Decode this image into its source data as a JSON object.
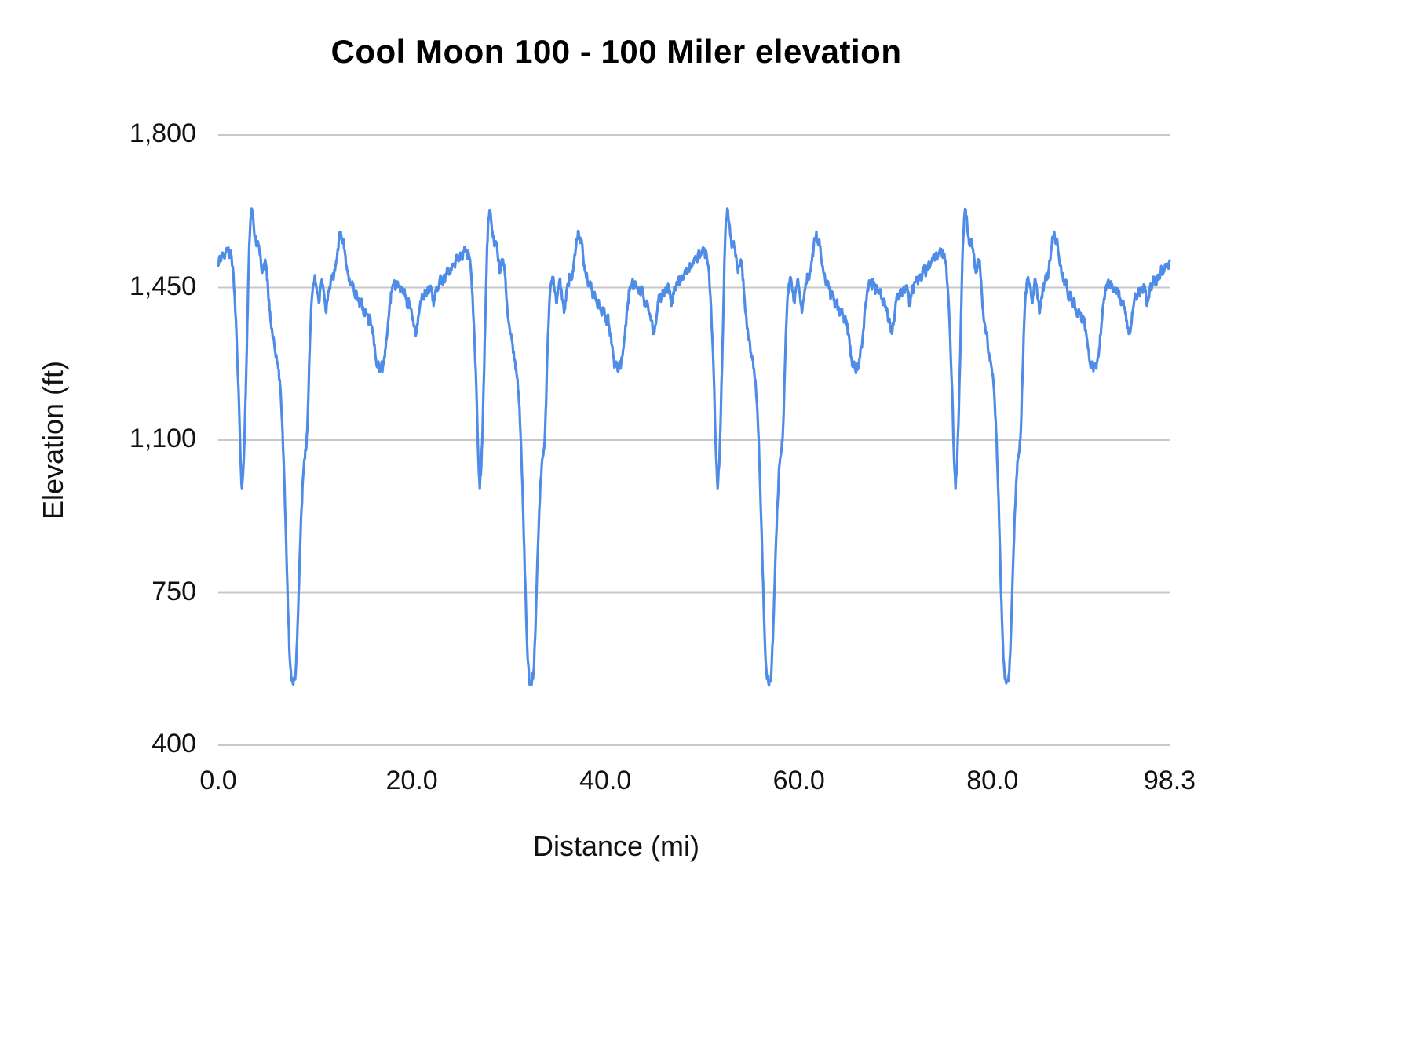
{
  "chart_data": {
    "type": "line",
    "title": "Cool Moon 100 - 100 Miler elevation",
    "xlabel": "Distance (mi)",
    "ylabel": "Elevation (ft)",
    "xlim": [
      0,
      98.3
    ],
    "ylim": [
      400,
      1800
    ],
    "grid": true,
    "legend": "none",
    "x_tick_values": [
      0,
      20,
      40,
      60,
      80,
      98.3
    ],
    "x_tick_labels": [
      "0.0",
      "20.0",
      "40.0",
      "60.0",
      "80.0",
      "98.3"
    ],
    "y_tick_values": [
      400,
      750,
      1100,
      1450,
      1800
    ],
    "y_tick_labels": [
      "400",
      "750",
      "1,100",
      "1,450",
      "1,800"
    ],
    "series": [
      {
        "name": "Elevation",
        "color": "#4f8ce8",
        "laps": 4,
        "lap_distance_mi": 24.575,
        "lap_profile": [
          [
            0,
            1500
          ],
          [
            0.15,
            1522
          ],
          [
            0.3,
            1512
          ],
          [
            0.45,
            1530
          ],
          [
            0.6,
            1518
          ],
          [
            0.8,
            1532
          ],
          [
            1,
            1538
          ],
          [
            1.15,
            1518
          ],
          [
            1.3,
            1528
          ],
          [
            1.5,
            1498
          ],
          [
            1.7,
            1430
          ],
          [
            1.9,
            1335
          ],
          [
            2.1,
            1215
          ],
          [
            2.3,
            1055
          ],
          [
            2.45,
            988
          ],
          [
            2.6,
            1040
          ],
          [
            2.75,
            1135
          ],
          [
            2.9,
            1265
          ],
          [
            3.05,
            1405
          ],
          [
            3.2,
            1545
          ],
          [
            3.35,
            1610
          ],
          [
            3.5,
            1628
          ],
          [
            3.65,
            1598
          ],
          [
            3.8,
            1565
          ],
          [
            3.95,
            1545
          ],
          [
            4.1,
            1556
          ],
          [
            4.25,
            1538
          ],
          [
            4.4,
            1512
          ],
          [
            4.55,
            1484
          ],
          [
            4.7,
            1500
          ],
          [
            4.85,
            1514
          ],
          [
            5,
            1492
          ],
          [
            5.15,
            1444
          ],
          [
            5.3,
            1398
          ],
          [
            5.45,
            1368
          ],
          [
            5.6,
            1344
          ],
          [
            5.75,
            1330
          ],
          [
            5.9,
            1300
          ],
          [
            6.05,
            1284
          ],
          [
            6.2,
            1264
          ],
          [
            6.35,
            1238
          ],
          [
            6.5,
            1188
          ],
          [
            6.65,
            1118
          ],
          [
            6.8,
            1028
          ],
          [
            6.95,
            918
          ],
          [
            7.1,
            798
          ],
          [
            7.25,
            688
          ],
          [
            7.4,
            598
          ],
          [
            7.55,
            552
          ],
          [
            7.7,
            542
          ],
          [
            7.85,
            550
          ],
          [
            8,
            566
          ],
          [
            8.15,
            640
          ],
          [
            8.3,
            742
          ],
          [
            8.45,
            850
          ],
          [
            8.6,
            940
          ],
          [
            8.75,
            1012
          ],
          [
            8.9,
            1056
          ],
          [
            9.05,
            1076
          ],
          [
            9.2,
            1122
          ],
          [
            9.35,
            1232
          ],
          [
            9.5,
            1342
          ],
          [
            9.65,
            1420
          ],
          [
            9.8,
            1458
          ],
          [
            9.95,
            1474
          ],
          [
            10.1,
            1458
          ],
          [
            10.25,
            1438
          ],
          [
            10.4,
            1414
          ],
          [
            10.55,
            1450
          ],
          [
            10.7,
            1468
          ],
          [
            10.85,
            1448
          ],
          [
            11,
            1420
          ],
          [
            11.15,
            1392
          ],
          [
            11.3,
            1420
          ],
          [
            11.45,
            1444
          ],
          [
            11.6,
            1458
          ],
          [
            11.75,
            1478
          ],
          [
            11.9,
            1468
          ],
          [
            12.05,
            1488
          ],
          [
            12.2,
            1512
          ],
          [
            12.35,
            1538
          ],
          [
            12.5,
            1562
          ],
          [
            12.65,
            1578
          ],
          [
            12.8,
            1552
          ],
          [
            12.95,
            1560
          ],
          [
            13.1,
            1528
          ],
          [
            13.25,
            1500
          ],
          [
            13.4,
            1482
          ],
          [
            13.55,
            1470
          ],
          [
            13.7,
            1456
          ],
          [
            13.85,
            1464
          ],
          [
            14,
            1446
          ],
          [
            14.15,
            1426
          ],
          [
            14.3,
            1440
          ],
          [
            14.45,
            1420
          ],
          [
            14.6,
            1406
          ],
          [
            14.75,
            1420
          ],
          [
            14.9,
            1400
          ],
          [
            15.05,
            1386
          ],
          [
            15.2,
            1400
          ],
          [
            15.35,
            1390
          ],
          [
            15.5,
            1370
          ],
          [
            15.65,
            1384
          ],
          [
            15.8,
            1364
          ],
          [
            15.95,
            1344
          ],
          [
            16.1,
            1318
          ],
          [
            16.25,
            1290
          ],
          [
            16.4,
            1268
          ],
          [
            16.55,
            1280
          ],
          [
            16.7,
            1258
          ],
          [
            16.85,
            1274
          ],
          [
            17,
            1264
          ],
          [
            17.15,
            1290
          ],
          [
            17.3,
            1312
          ],
          [
            17.45,
            1342
          ],
          [
            17.6,
            1380
          ],
          [
            17.75,
            1416
          ],
          [
            17.9,
            1440
          ],
          [
            18.05,
            1456
          ],
          [
            18.2,
            1466
          ],
          [
            18.35,
            1450
          ],
          [
            18.5,
            1464
          ],
          [
            18.65,
            1454
          ],
          [
            18.8,
            1440
          ],
          [
            18.95,
            1450
          ],
          [
            19.1,
            1436
          ],
          [
            19.25,
            1446
          ],
          [
            19.4,
            1424
          ],
          [
            19.55,
            1410
          ],
          [
            19.7,
            1420
          ],
          [
            19.85,
            1404
          ],
          [
            20,
            1390
          ],
          [
            20.15,
            1374
          ],
          [
            20.3,
            1358
          ],
          [
            20.45,
            1344
          ],
          [
            20.6,
            1364
          ],
          [
            20.75,
            1390
          ],
          [
            20.9,
            1418
          ],
          [
            21.05,
            1434
          ],
          [
            21.2,
            1424
          ],
          [
            21.35,
            1444
          ],
          [
            21.5,
            1430
          ],
          [
            21.65,
            1450
          ],
          [
            21.8,
            1438
          ],
          [
            21.95,
            1454
          ],
          [
            22.1,
            1442
          ],
          [
            22.25,
            1408
          ],
          [
            22.4,
            1430
          ],
          [
            22.55,
            1452
          ],
          [
            22.7,
            1444
          ],
          [
            22.85,
            1462
          ],
          [
            23,
            1474
          ],
          [
            23.15,
            1458
          ],
          [
            23.3,
            1478
          ],
          [
            23.45,
            1468
          ],
          [
            23.6,
            1484
          ],
          [
            23.75,
            1494
          ],
          [
            23.9,
            1482
          ],
          [
            24.05,
            1494
          ],
          [
            24.2,
            1504
          ],
          [
            24.4,
            1498
          ],
          [
            24.575,
            1512
          ]
        ]
      }
    ]
  },
  "style": {
    "line_color": "#4f8ce8",
    "grid_color": "#c8c8c8",
    "text_color": "#111111",
    "title_color": "#000000",
    "background": "#ffffff",
    "line_width": 3.2,
    "noise_ft": 11
  }
}
